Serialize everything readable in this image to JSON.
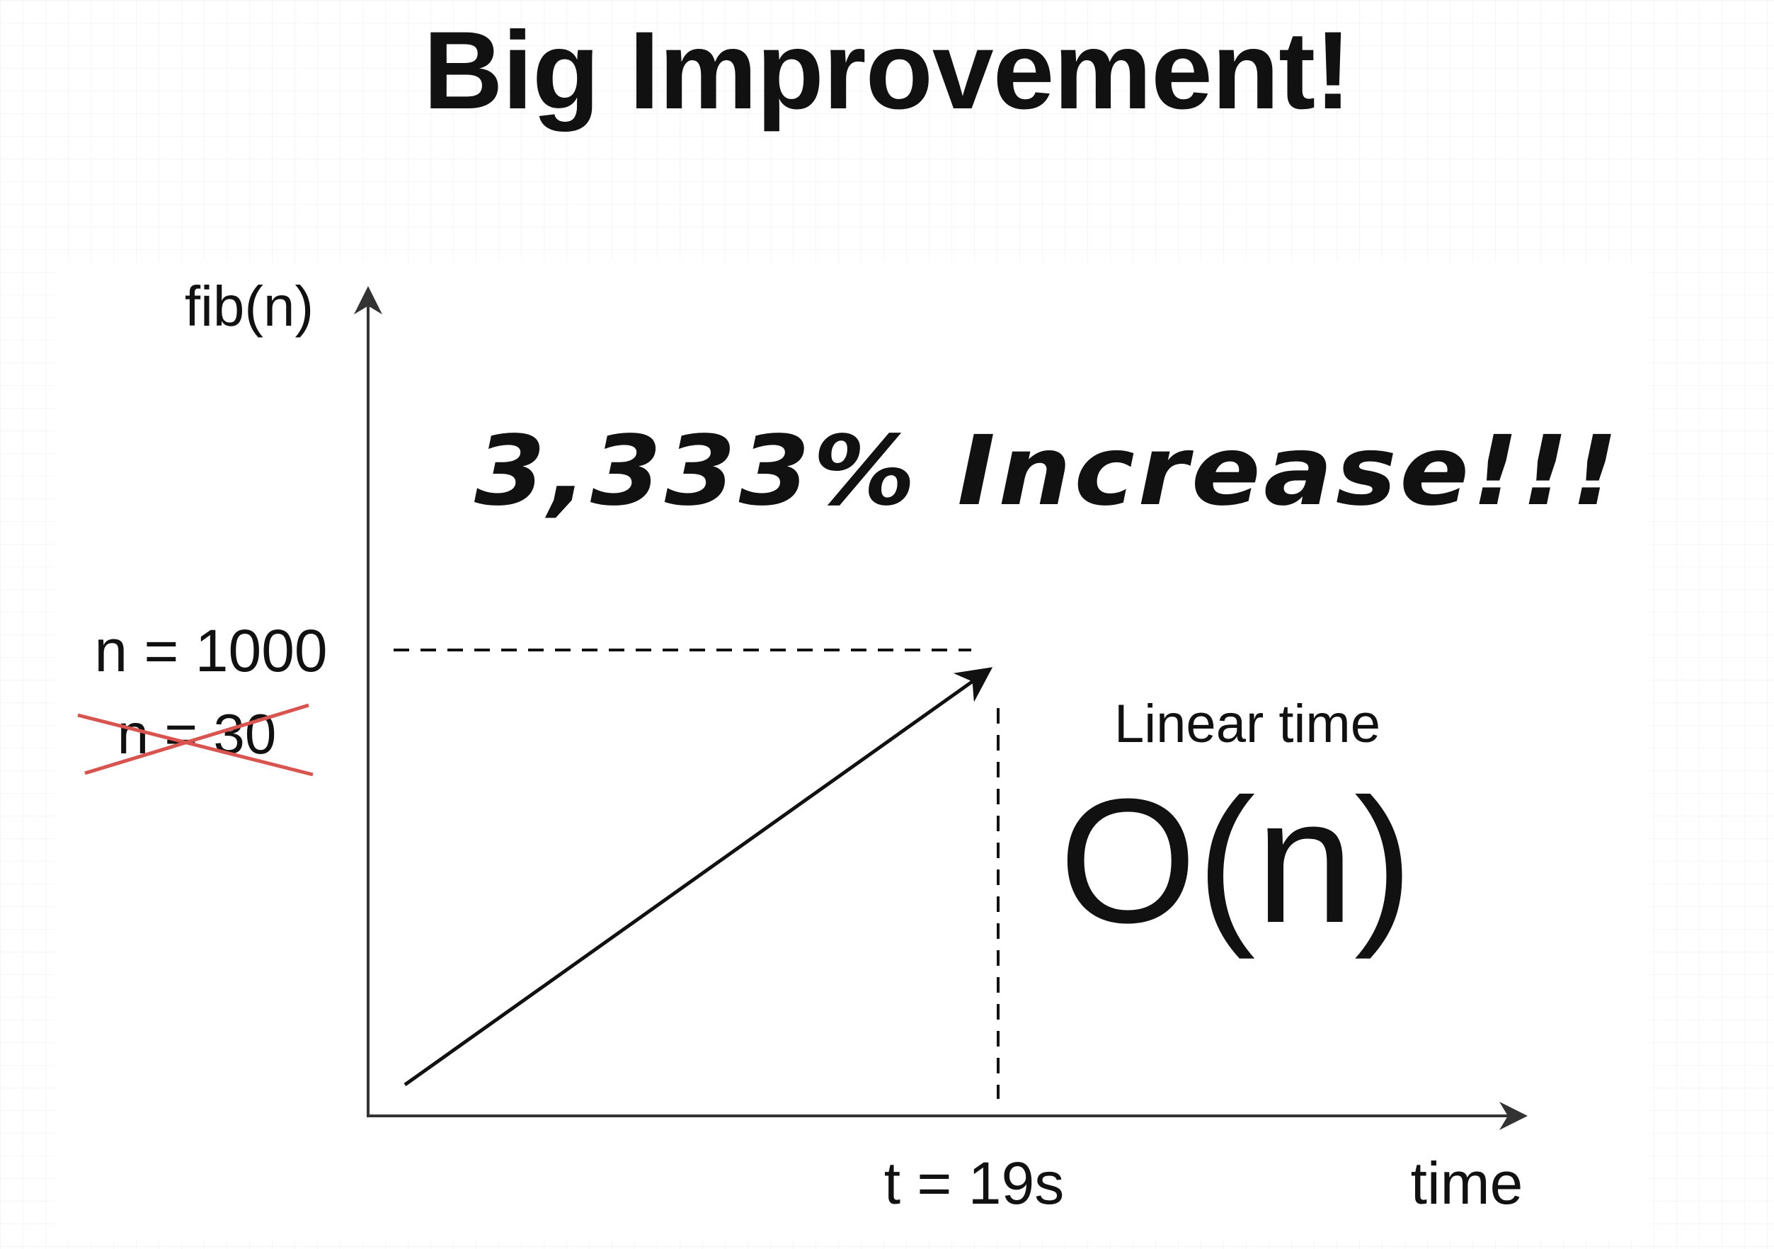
{
  "title": "Big Improvement!",
  "axes": {
    "y_label": "fib(n)",
    "x_label": "time"
  },
  "labels": {
    "n_new": "n = 1000",
    "n_old": "n = 30",
    "t_value": "t = 19s",
    "increase": "3,333% Increase!!!",
    "complexity_caption": "Linear time",
    "complexity": "O(n)"
  },
  "colors": {
    "ink": "#111111",
    "axis": "#333333",
    "strike": "#d9534f",
    "grid": "#e6e6e6"
  }
}
